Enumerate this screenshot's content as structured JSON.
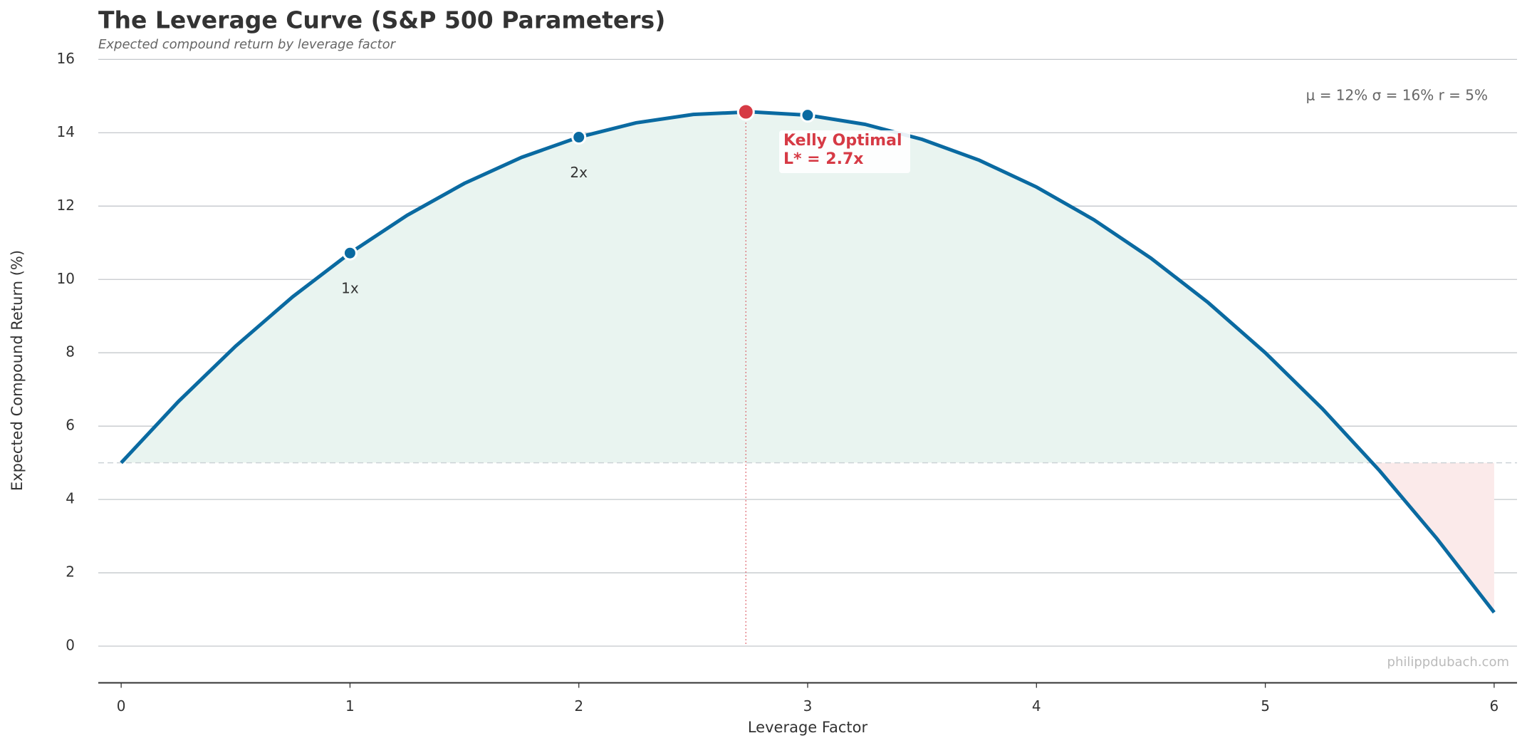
{
  "chart_data": {
    "type": "line",
    "title": "The Leverage Curve (S&P 500 Parameters)",
    "subtitle": "Expected compound return by leverage factor",
    "x_label": "Leverage Factor",
    "y_label": "Expected Compound Return (%)",
    "x": [
      0,
      0.25,
      0.5,
      0.75,
      1,
      1.25,
      1.5,
      1.75,
      2,
      2.25,
      2.5,
      2.75,
      3,
      3.25,
      3.5,
      3.75,
      4,
      4.25,
      4.5,
      4.75,
      5,
      5.25,
      5.5,
      5.75,
      6
    ],
    "values": [
      5,
      6.67,
      8.18,
      9.53,
      10.72,
      11.75,
      12.62,
      13.33,
      13.88,
      14.27,
      14.5,
      14.57,
      14.48,
      14.23,
      13.82,
      13.25,
      12.52,
      11.63,
      10.58,
      9.37,
      8,
      6.47,
      4.78,
      2.93,
      0.92
    ],
    "color": "#0a6aa1",
    "points": [
      {
        "x": 1,
        "y": 10.72,
        "label": "1x"
      },
      {
        "x": 2,
        "y": 13.88,
        "label": "2x"
      },
      {
        "x": 3,
        "y": 14.48
      }
    ],
    "kelly": {
      "x": 2.73,
      "y": 14.57,
      "label": [
        "Kelly Optimal",
        "L* = 2.7x"
      ],
      "color": "#d63a45"
    },
    "baseline": 5,
    "parameters": "μ = 12%   σ = 16%   r = 5%",
    "watermark": "philippdubach.com",
    "xlim": [
      -0.1,
      6.1
    ],
    "ylim": [
      -1,
      16
    ],
    "xticks": [
      0,
      1,
      2,
      3,
      4,
      5,
      6
    ],
    "yticks": [
      0,
      2,
      4,
      6,
      8,
      10,
      12,
      14,
      16
    ],
    "grid": true
  }
}
